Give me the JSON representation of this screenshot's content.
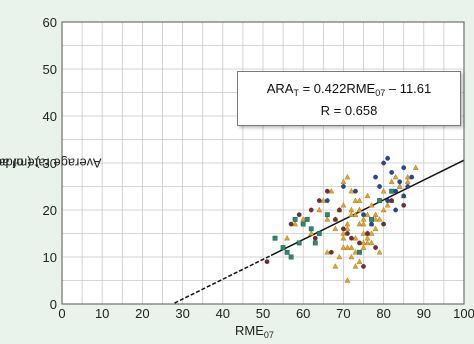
{
  "chart_data": {
    "type": "scatter",
    "xlabel": "RME",
    "xlabel_sub": "07",
    "ylabel": "Average rate of advance (ARA",
    "ylabel_sub": "T",
    "ylabel_end": ") (m/day)",
    "xlim": [
      0,
      100
    ],
    "ylim": [
      0,
      60
    ],
    "x_ticks": [
      "0",
      "10",
      "20",
      "30",
      "40",
      "50",
      "60",
      "70",
      "80",
      "90",
      "100"
    ],
    "y_ticks": [
      "0",
      "10",
      "20",
      "30",
      "40",
      "50",
      "60"
    ],
    "grid": true,
    "annotation": {
      "eq_prefix": "ARA",
      "eq_prefix_sub": "T",
      "eq_mid": " = 0.422RME",
      "eq_mid_sub": "07",
      "eq_end": " – 11.61",
      "r_text": "R = 0.658"
    },
    "regression": {
      "slope": 0.422,
      "intercept": -11.61,
      "dashed_range": [
        28,
        52
      ],
      "solid_range": [
        52,
        100
      ]
    },
    "series": [
      {
        "color": "#e8a020",
        "marker": "triangle",
        "x": [
          68,
          70,
          71,
          72,
          73,
          74,
          75,
          76,
          77,
          78,
          70,
          72,
          74,
          76,
          78,
          79,
          80,
          81,
          82,
          83,
          84,
          85,
          86,
          70,
          71,
          72,
          73,
          74,
          75,
          76,
          77,
          69,
          71,
          73,
          75,
          77,
          79,
          64,
          66,
          68,
          70,
          72,
          74,
          76,
          56,
          58,
          60,
          62,
          66,
          68,
          70,
          72,
          74,
          76,
          78,
          80,
          82,
          84,
          86,
          88,
          71,
          73,
          75,
          77,
          79,
          65,
          67,
          69,
          71,
          73,
          75
        ],
        "y": [
          18,
          21,
          16,
          20,
          19,
          22,
          17,
          15,
          21,
          19,
          14,
          12,
          17,
          13,
          18,
          22,
          24,
          21,
          26,
          27,
          25,
          23,
          26,
          26,
          27,
          24,
          22,
          20,
          18,
          19,
          17,
          10,
          12,
          11,
          15,
          13,
          11,
          20,
          18,
          16,
          15,
          19,
          20,
          23,
          14,
          17,
          18,
          15,
          11,
          8,
          12,
          10,
          9,
          14,
          16,
          20,
          22,
          25,
          27,
          29,
          5,
          8,
          13,
          15,
          18,
          22,
          24,
          20,
          17,
          14,
          12
        ]
      },
      {
        "color": "#1e4aa0",
        "marker": "circle",
        "x": [
          78,
          80,
          81,
          82,
          83,
          84,
          85,
          86,
          79,
          81,
          83,
          85,
          87,
          73,
          75,
          77,
          66,
          70
        ],
        "y": [
          27,
          30,
          31,
          28,
          24,
          26,
          29,
          25,
          25,
          22,
          20,
          23,
          27,
          24,
          19,
          17,
          22,
          25
        ]
      },
      {
        "color": "#7a2a35",
        "marker": "circle",
        "x": [
          51,
          57,
          59,
          62,
          64,
          66,
          68,
          70,
          72,
          74,
          76,
          78,
          80,
          82,
          85,
          63,
          67,
          71,
          75,
          69
        ],
        "y": [
          9,
          17,
          19,
          20,
          22,
          24,
          18,
          16,
          14,
          13,
          15,
          12,
          17,
          22,
          21,
          14,
          11,
          15,
          8,
          20
        ]
      },
      {
        "color": "#2a8a70",
        "marker": "square",
        "x": [
          53,
          55,
          56,
          58,
          60,
          61,
          62,
          64,
          57,
          59,
          66,
          74,
          77,
          79,
          82,
          63
        ],
        "y": [
          14,
          12,
          11,
          18,
          17,
          18,
          16,
          15,
          10,
          13,
          19,
          11,
          18,
          22,
          24,
          13
        ]
      }
    ]
  }
}
